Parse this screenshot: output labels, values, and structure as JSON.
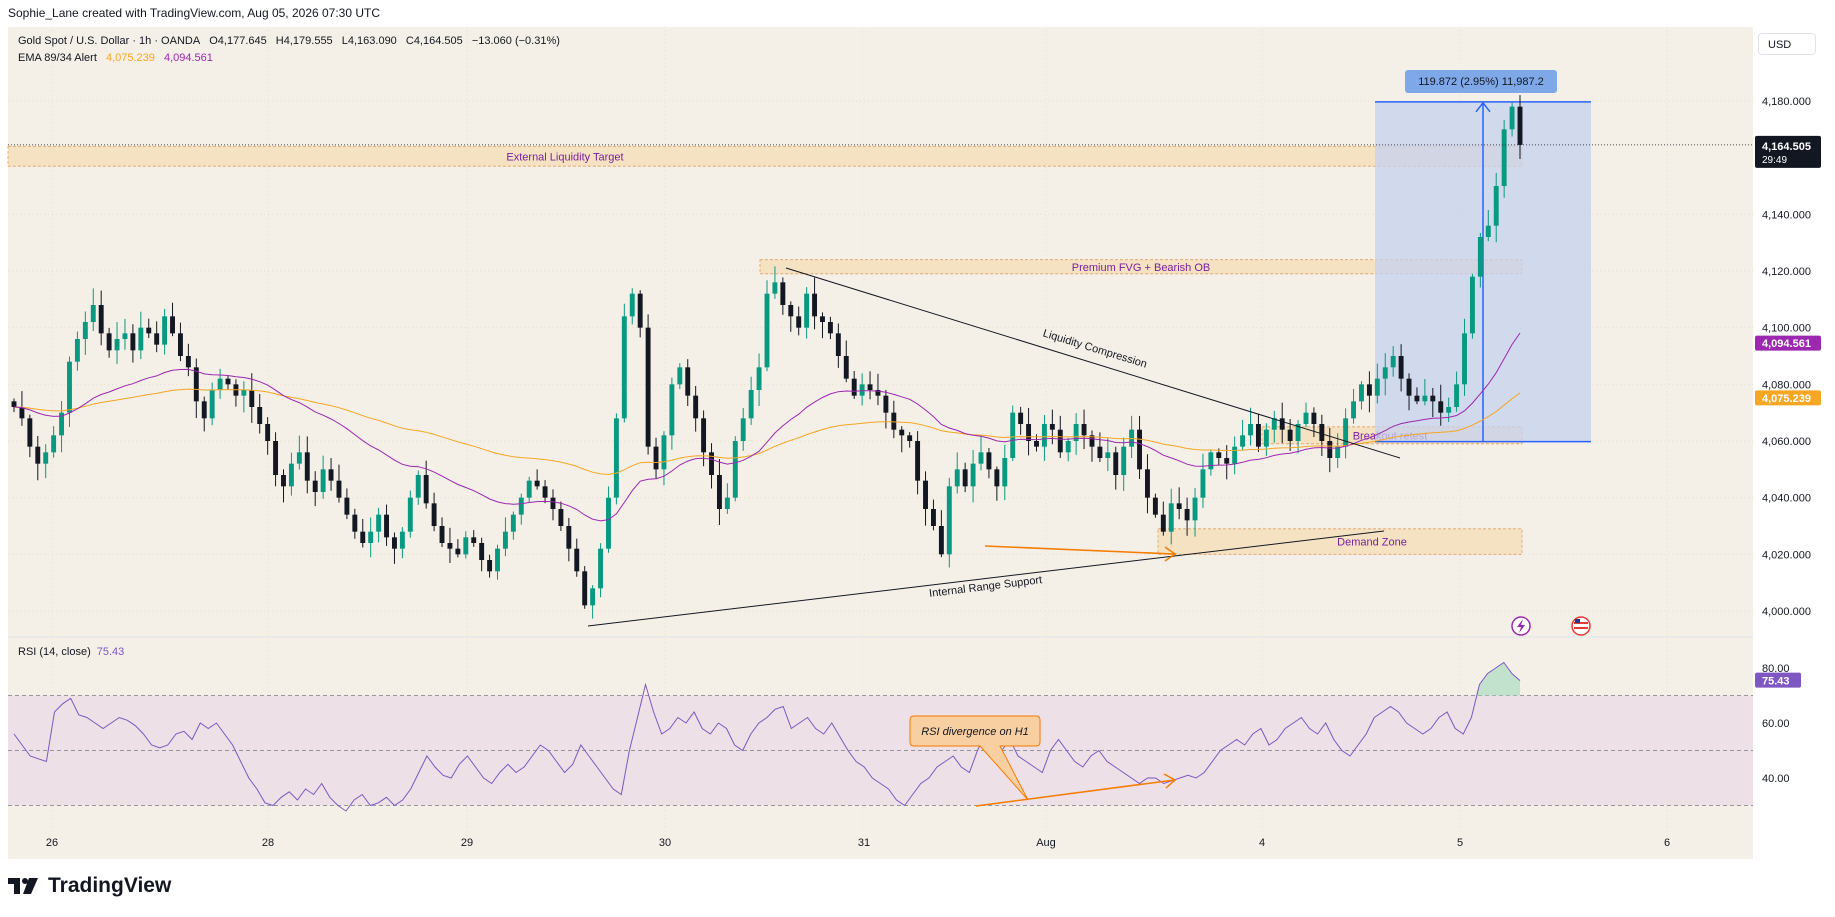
{
  "header": {
    "credit": "Sophie_Lane created with TradingView.com, Aug 05, 2026 07:30 UTC"
  },
  "legend": {
    "symbol": "Gold Spot / U.S. Dollar · 1h · OANDA",
    "open": "O4,177.645",
    "high": "H4,179.555",
    "low": "L4,163.090",
    "close": "C4,164.505",
    "change": "−13.060 (−0.31%)",
    "ema_label": "EMA 89/34 Alert",
    "ema89_value": "4,075.239",
    "ema34_value": "4,094.561"
  },
  "currency_button": "USD",
  "logo_text": "TradingView",
  "rsi": {
    "label": "RSI (14, close)",
    "value": "75.43"
  },
  "colors": {
    "up": "#089981",
    "down": "#131722",
    "ema89": "#f5a623",
    "ema34": "#9c27b0",
    "rsi": "#7e57c2",
    "zone": "#f6ddb5",
    "zone_label": "#7b1fa2",
    "projection": "#c5d2ef",
    "projection_line": "#2962ff",
    "arrow": "#f57c00"
  },
  "chart_data": [
    {
      "type": "candlestick",
      "timeframe": "1h",
      "x_labels": [
        "26",
        "28",
        "29",
        "30",
        "31",
        "Aug",
        "4",
        "5",
        "6"
      ],
      "y_ticks": [
        4000,
        4020,
        4040,
        4060,
        4080,
        4100,
        4120,
        4140,
        4180
      ],
      "y_tick_labels": [
        "4,000.000",
        "4,020.000",
        "4,040.000",
        "4,060.000",
        "4,080.000",
        "4,100.000",
        "4,120.000",
        "4,140.000",
        "4,180.000"
      ],
      "ylim": [
        3993,
        4188
      ],
      "ohlc_anchor_closes": [
        4072,
        4068,
        4058,
        4052,
        4056,
        4062,
        4070,
        4088,
        4096,
        4102,
        4108,
        4098,
        4092,
        4096,
        4098,
        4092,
        4100,
        4098,
        4094,
        4104,
        4098,
        4090,
        4086,
        4074,
        4068,
        4078,
        4082,
        4080,
        4076,
        4078,
        4072,
        4066,
        4060,
        4048,
        4044,
        4052,
        4056,
        4046,
        4042,
        4050,
        4046,
        4040,
        4034,
        4028,
        4024,
        4028,
        4034,
        4026,
        4022,
        4028,
        4040,
        4048,
        4038,
        4030,
        4024,
        4022,
        4020,
        4026,
        4024,
        4018,
        4014,
        4022,
        4028,
        4034,
        4040,
        4046,
        4044,
        4040,
        4036,
        4030,
        4022,
        4014,
        4002,
        4008,
        4022,
        4040,
        4068,
        4104,
        4112,
        4100,
        4058,
        4050,
        4062,
        4080,
        4086,
        4076,
        4068,
        4056,
        4048,
        4036,
        4040,
        4060,
        4068,
        4078,
        4086,
        4112,
        4116,
        4108,
        4104,
        4100,
        4112,
        4104,
        4102,
        4098,
        4090,
        4082,
        4076,
        4080,
        4078,
        4076,
        4070,
        4064,
        4062,
        4060,
        4046,
        4036,
        4030,
        4020,
        4044,
        4050,
        4044,
        4052,
        4056,
        4050,
        4044,
        4054,
        4070,
        4066,
        4060,
        4058,
        4066,
        4064,
        4056,
        4060,
        4066,
        4062,
        4058,
        4054,
        4056,
        4048,
        4058,
        4064,
        4050,
        4040,
        4034,
        4028,
        4038,
        4036,
        4032,
        4040,
        4050,
        4056,
        4054,
        4052,
        4058,
        4062,
        4066,
        4058,
        4064,
        4068,
        4064,
        4060,
        4066,
        4070,
        4066,
        4060,
        4054,
        4058,
        4068,
        4074,
        4080,
        4076,
        4082,
        4086,
        4090,
        4082,
        4076,
        4074,
        4076,
        4074,
        4070,
        4072,
        4080,
        4098,
        4118,
        4132,
        4136,
        4150,
        4170,
        4178,
        4164.505
      ],
      "series": [
        {
          "name": "EMA 89",
          "last": 4075.239
        },
        {
          "name": "EMA 34",
          "last": 4094.561
        }
      ],
      "last_price": {
        "value": 4164.505,
        "label": "4,164.505",
        "countdown": "29:49"
      },
      "ema_labels": [
        {
          "label": "4,094.561"
        },
        {
          "label": "4,075.239"
        }
      ],
      "zones": [
        {
          "name": "External Liquidity Target",
          "y0": 4157,
          "y1": 4164
        },
        {
          "name": "Premium FVG + Bearish OB",
          "y0": 4119,
          "y1": 4124
        },
        {
          "name": "Breakout retest",
          "y0": 4059,
          "y1": 4065
        },
        {
          "name": "Demand Zone",
          "y0": 4020,
          "y1": 4029
        }
      ],
      "trendlines": [
        {
          "name": "Liquidity Compression"
        },
        {
          "name": "Internal Range Support"
        }
      ],
      "projection": {
        "label": "119.872 (2.95%) 11,987.2",
        "from": 4059.8,
        "to": 4179.7
      }
    },
    {
      "type": "line",
      "name": "RSI (14, close)",
      "y_ticks": [
        40,
        60,
        80
      ],
      "y_tick_labels": [
        "40.00",
        "60.00",
        "80.00"
      ],
      "ylim": [
        27,
        85
      ],
      "band": [
        30,
        70
      ],
      "values": [
        56,
        52,
        48,
        47,
        46,
        64,
        67,
        69,
        63,
        62,
        60,
        58,
        60,
        62,
        61,
        59,
        56,
        52,
        51,
        52,
        56,
        57,
        54,
        60,
        58,
        60,
        56,
        52,
        46,
        40,
        36,
        31,
        30,
        33,
        35,
        32,
        36,
        34,
        38,
        33,
        30,
        28,
        32,
        34,
        30,
        31,
        33,
        30,
        32,
        36,
        42,
        48,
        44,
        41,
        40,
        45,
        48,
        44,
        40,
        38,
        42,
        45,
        42,
        44,
        48,
        52,
        50,
        46,
        42,
        45,
        52,
        48,
        44,
        40,
        36,
        34,
        50,
        62,
        74,
        64,
        56,
        58,
        62,
        60,
        64,
        58,
        56,
        60,
        58,
        52,
        50,
        56,
        60,
        62,
        65,
        66,
        58,
        60,
        62,
        58,
        56,
        60,
        55,
        50,
        46,
        44,
        40,
        38,
        36,
        32,
        30,
        34,
        38,
        40,
        44,
        46,
        48,
        44,
        42,
        50,
        56,
        52,
        50,
        54,
        48,
        46,
        44,
        42,
        50,
        54,
        50,
        46,
        44,
        48,
        50,
        46,
        44,
        42,
        40,
        38,
        40,
        40,
        38,
        39,
        40,
        41,
        40,
        42,
        46,
        50,
        52,
        54,
        52,
        56,
        58,
        52,
        54,
        58,
        60,
        62,
        58,
        56,
        60,
        54,
        50,
        48,
        52,
        56,
        62,
        64,
        66,
        64,
        60,
        58,
        56,
        58,
        62,
        64,
        58,
        56,
        62,
        74,
        78,
        80,
        82,
        78,
        75.43
      ],
      "annotation": "RSI divergence on H1",
      "last": 75.43
    }
  ]
}
